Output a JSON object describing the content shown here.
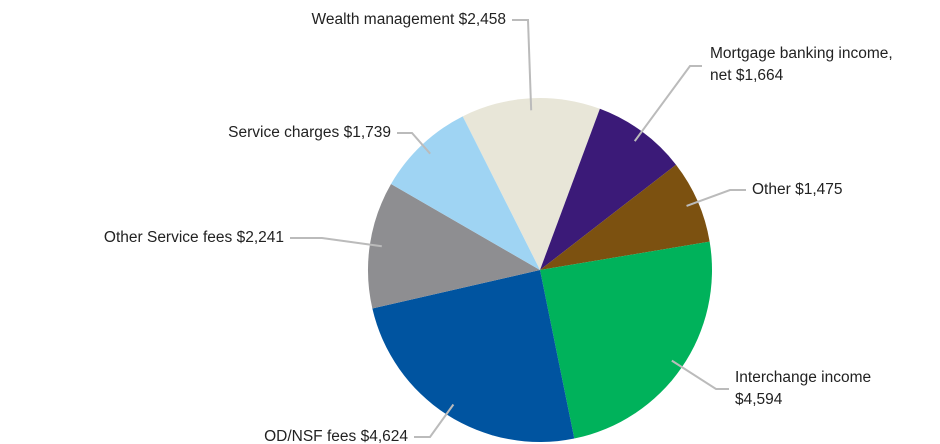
{
  "chart_data": {
    "type": "pie",
    "categories": [
      "Wealth management",
      "Mortgage banking income, net",
      "Other",
      "Interchange income",
      "OD/NSF fees",
      "Other Service fees",
      "Service charges"
    ],
    "values": [
      2458,
      1664,
      1475,
      4594,
      4624,
      2241,
      1739
    ],
    "value_labels": [
      "$2,458",
      "$1,664",
      "$1,475",
      "$4,594",
      "$4,624",
      "$2,241",
      "$1,739"
    ],
    "colors": [
      "#e8e6d8",
      "#3b1a78",
      "#7c5110",
      "#00b25b",
      "#0054a0",
      "#8e8e91",
      "#9fd4f3"
    ]
  }
}
